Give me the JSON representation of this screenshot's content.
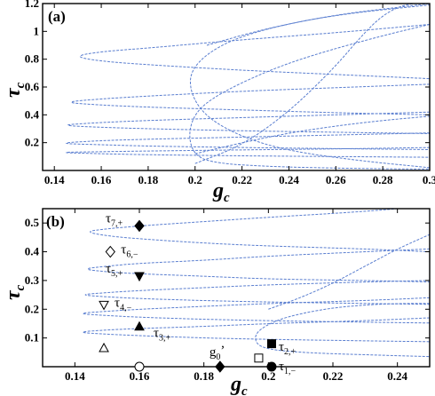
{
  "chart_data": [
    {
      "type": "line",
      "panel_label": "(a)",
      "xlabel": "g",
      "xlabel_sub": "c",
      "ylabel": "τ",
      "ylabel_sub": "c",
      "xlim": [
        0.135,
        0.3
      ],
      "ylim": [
        0.0,
        1.2
      ],
      "x_ticks": [
        0.14,
        0.16,
        0.18,
        0.2,
        0.22,
        0.24,
        0.26,
        0.28,
        0.3
      ],
      "x_tick_labels": [
        "0.14",
        "0.16",
        "0.18",
        "0.2",
        "0.22",
        "0.24",
        "0.26",
        "0.28",
        "0.3"
      ],
      "y_ticks": [
        0.2,
        0.4,
        0.6,
        0.8,
        1.0,
        1.2
      ],
      "y_tick_labels": [
        "0.2",
        "0.4",
        "0.6",
        "0.8",
        "1",
        "1.2"
      ],
      "color": "#5b7fd0",
      "series": [
        {
          "x": [
            0.3,
            0.26,
            0.22,
            0.18,
            0.16,
            0.148,
            0.16,
            0.18,
            0.22,
            0.26,
            0.3
          ],
          "y": [
            1.05,
            0.99,
            0.94,
            0.88,
            0.855,
            0.82,
            0.785,
            0.76,
            0.72,
            0.69,
            0.66
          ]
        },
        {
          "x": [
            0.3,
            0.26,
            0.22,
            0.18,
            0.16,
            0.143,
            0.16,
            0.18,
            0.22,
            0.26,
            0.3
          ],
          "y": [
            0.62,
            0.595,
            0.57,
            0.535,
            0.515,
            0.49,
            0.47,
            0.455,
            0.435,
            0.415,
            0.4
          ]
        },
        {
          "x": [
            0.3,
            0.26,
            0.22,
            0.18,
            0.16,
            0.141,
            0.16,
            0.18,
            0.22,
            0.26,
            0.3
          ],
          "y": [
            0.42,
            0.4,
            0.38,
            0.36,
            0.345,
            0.325,
            0.31,
            0.3,
            0.285,
            0.275,
            0.265
          ]
        },
        {
          "x": [
            0.3,
            0.26,
            0.22,
            0.18,
            0.16,
            0.14,
            0.16,
            0.18,
            0.22,
            0.26,
            0.3
          ],
          "y": [
            0.27,
            0.255,
            0.24,
            0.225,
            0.215,
            0.195,
            0.185,
            0.175,
            0.165,
            0.157,
            0.15
          ]
        },
        {
          "x": [
            0.3,
            0.26,
            0.22,
            0.18,
            0.16,
            0.14,
            0.16,
            0.18,
            0.22,
            0.26,
            0.3
          ],
          "y": [
            0.165,
            0.155,
            0.148,
            0.14,
            0.135,
            0.13,
            0.12,
            0.113,
            0.105,
            0.1,
            0.095
          ]
        },
        {
          "x": [
            0.3,
            0.28,
            0.25,
            0.23,
            0.21,
            0.2,
            0.197,
            0.2,
            0.21,
            0.23,
            0.25,
            0.28,
            0.3
          ],
          "y": [
            1.05,
            0.97,
            0.83,
            0.71,
            0.55,
            0.42,
            0.25,
            0.1,
            0.05,
            0.03,
            0.02,
            0.012,
            0.01
          ]
        },
        {
          "x": [
            0.3,
            0.27,
            0.24,
            0.22,
            0.205,
            0.198,
            0.198,
            0.21,
            0.23,
            0.26,
            0.3
          ],
          "y": [
            0.02,
            0.07,
            0.14,
            0.24,
            0.38,
            0.55,
            0.73,
            0.9,
            1.02,
            1.12,
            1.19
          ]
        },
        {
          "x": [
            0.2,
            0.22,
            0.24,
            0.26,
            0.28,
            0.3
          ],
          "y": [
            0.12,
            0.2,
            0.27,
            0.32,
            0.36,
            0.39
          ]
        },
        {
          "x": [
            0.2,
            0.22,
            0.24,
            0.26,
            0.27,
            0.28,
            0.29,
            0.3
          ],
          "y": [
            0.05,
            0.18,
            0.42,
            0.75,
            0.95,
            1.12,
            1.2,
            1.2
          ]
        },
        {
          "x": [
            0.205,
            0.23,
            0.26,
            0.29,
            0.3
          ],
          "y": [
            0.9,
            1.02,
            1.12,
            1.18,
            1.2
          ]
        }
      ]
    },
    {
      "type": "scatter",
      "panel_label": "(b)",
      "xlabel": "g",
      "xlabel_sub": "c",
      "ylabel": "τ",
      "ylabel_sub": "c",
      "xlim": [
        0.13,
        0.25
      ],
      "ylim": [
        0.0,
        0.55
      ],
      "x_ticks": [
        0.14,
        0.16,
        0.18,
        0.2,
        0.22,
        0.24
      ],
      "x_tick_labels": [
        "0.14",
        "0.16",
        "0.18",
        "0.2",
        "0.22",
        "0.24"
      ],
      "y_ticks": [
        0.1,
        0.2,
        0.3,
        0.4,
        0.5
      ],
      "y_tick_labels": [
        "0.1",
        "0.2",
        "0.3",
        "0.4",
        "0.5"
      ],
      "color": "#5b7fd0",
      "series": [
        {
          "x": [
            0.25,
            0.23,
            0.2,
            0.18,
            0.16,
            0.15,
            0.143,
            0.15,
            0.16,
            0.18,
            0.2,
            0.23,
            0.25
          ],
          "y": [
            0.56,
            0.54,
            0.52,
            0.505,
            0.49,
            0.48,
            0.47,
            0.455,
            0.445,
            0.43,
            0.42,
            0.41,
            0.4
          ]
        },
        {
          "x": [
            0.25,
            0.23,
            0.2,
            0.18,
            0.16,
            0.15,
            0.142,
            0.15,
            0.16,
            0.18,
            0.2,
            0.23,
            0.25
          ],
          "y": [
            0.41,
            0.4,
            0.385,
            0.37,
            0.36,
            0.35,
            0.34,
            0.33,
            0.323,
            0.315,
            0.305,
            0.3,
            0.295
          ]
        },
        {
          "x": [
            0.25,
            0.23,
            0.2,
            0.18,
            0.16,
            0.15,
            0.141,
            0.15,
            0.16,
            0.18,
            0.2,
            0.23,
            0.25
          ],
          "y": [
            0.3,
            0.295,
            0.285,
            0.275,
            0.265,
            0.258,
            0.25,
            0.243,
            0.237,
            0.23,
            0.225,
            0.22,
            0.217
          ]
        },
        {
          "x": [
            0.25,
            0.23,
            0.2,
            0.18,
            0.16,
            0.15,
            0.14,
            0.15,
            0.16,
            0.18,
            0.2,
            0.23,
            0.25
          ],
          "y": [
            0.24,
            0.23,
            0.22,
            0.21,
            0.2,
            0.193,
            0.185,
            0.178,
            0.172,
            0.165,
            0.16,
            0.155,
            0.152
          ]
        },
        {
          "x": [
            0.25,
            0.23,
            0.2,
            0.18,
            0.16,
            0.15,
            0.14,
            0.15,
            0.16,
            0.18,
            0.2,
            0.23,
            0.25
          ],
          "y": [
            0.17,
            0.16,
            0.15,
            0.14,
            0.133,
            0.128,
            0.12,
            0.113,
            0.108,
            0.1,
            0.095,
            0.09,
            0.087
          ]
        },
        {
          "x": [
            0.25,
            0.24,
            0.23,
            0.22,
            0.21,
            0.202,
            0.196,
            0.196,
            0.2,
            0.21,
            0.22,
            0.235,
            0.25
          ],
          "y": [
            0.22,
            0.22,
            0.215,
            0.205,
            0.185,
            0.16,
            0.12,
            0.08,
            0.06,
            0.05,
            0.045,
            0.04,
            0.035
          ]
        },
        {
          "x": [
            0.2,
            0.21,
            0.22,
            0.23,
            0.24,
            0.25
          ],
          "y": [
            0.2,
            0.24,
            0.29,
            0.35,
            0.41,
            0.46
          ]
        }
      ],
      "markers": [
        {
          "label": "τ",
          "sub": "7,+",
          "x": 0.16,
          "y": 0.49,
          "shape": "diamond",
          "filled": true
        },
        {
          "label": "τ",
          "sub": "6,−",
          "x": 0.151,
          "y": 0.4,
          "shape": "diamond",
          "filled": false
        },
        {
          "label": "τ",
          "sub": "5,+",
          "x": 0.16,
          "y": 0.315,
          "shape": "triangle-down",
          "filled": true
        },
        {
          "label": "τ",
          "sub": "4,−",
          "x": 0.149,
          "y": 0.215,
          "shape": "triangle-down",
          "filled": false
        },
        {
          "label": "τ",
          "sub": "3,+",
          "x": 0.16,
          "y": 0.14,
          "shape": "triangle-up",
          "filled": true
        },
        {
          "label": "",
          "sub": "",
          "x": 0.149,
          "y": 0.065,
          "shape": "triangle-up",
          "filled": false
        },
        {
          "label": "",
          "sub": "",
          "x": 0.16,
          "y": 0.0,
          "shape": "circle",
          "filled": false
        },
        {
          "label": "g",
          "sub": "0",
          "x": 0.185,
          "y": 0.0,
          "shape": "diamond",
          "filled": true
        },
        {
          "label": "",
          "sub": "",
          "x": 0.197,
          "y": 0.03,
          "shape": "square",
          "filled": false
        },
        {
          "label": "τ",
          "sub": "2,+",
          "x": 0.201,
          "y": 0.08,
          "shape": "square",
          "filled": true
        },
        {
          "label": "τ",
          "sub": "1,−",
          "x": 0.201,
          "y": 0.0,
          "shape": "circle",
          "filled": true
        }
      ]
    }
  ]
}
